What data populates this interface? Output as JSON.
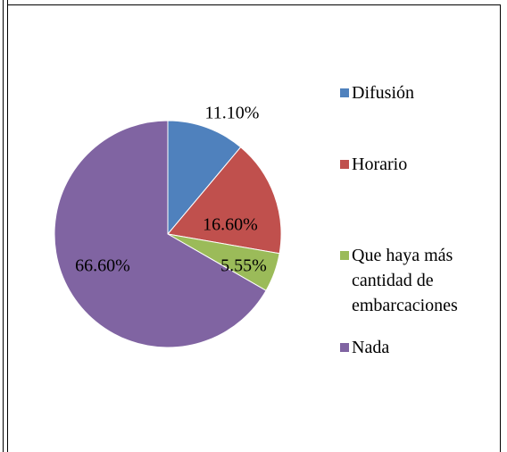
{
  "chart_data": {
    "type": "pie",
    "categories": [
      "Difusión",
      "Horario",
      "Que haya más cantidad de embarcaciones",
      "Nada"
    ],
    "values": [
      11.1,
      16.6,
      5.55,
      66.6
    ],
    "value_labels": [
      "11.10%",
      "16.60%",
      "5.55%",
      "66.60%"
    ],
    "colors": [
      "#4f81bd",
      "#c0504d",
      "#9bbb59",
      "#8064a2"
    ],
    "legend": "right"
  }
}
